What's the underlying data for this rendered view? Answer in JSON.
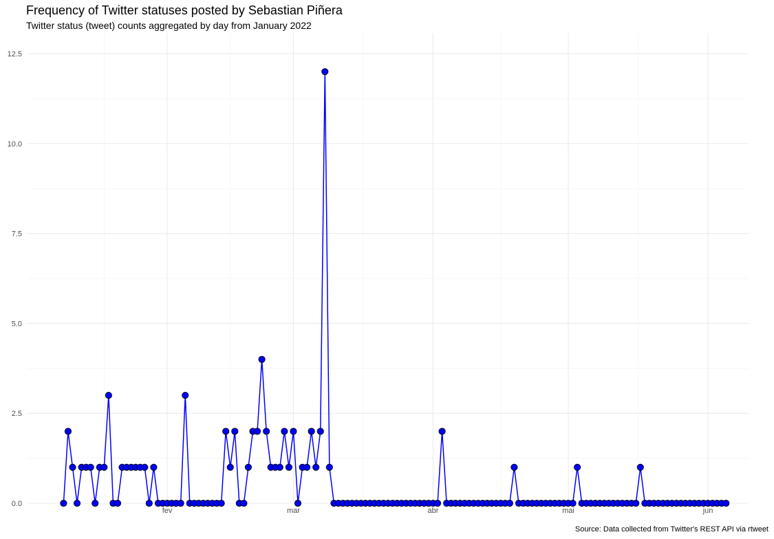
{
  "chart_data": {
    "type": "line",
    "title": "Frequency of Twitter statuses posted by Sebastian Piñera",
    "subtitle": "Twitter status (tweet) counts aggregated by day from January 2022",
    "caption": "Source: Data collected from Twitter's REST API via rtweet",
    "xlabel": "",
    "ylabel": "",
    "x_start": "2022-01-09",
    "x_end": "2022-06-05",
    "xlim": [
      "2022-01-01",
      "2022-06-10"
    ],
    "ylim": [
      0,
      12.5
    ],
    "y_ticks": [
      0.0,
      2.5,
      5.0,
      7.5,
      10.0,
      12.5
    ],
    "y_tick_labels": [
      "0.0",
      "2.5",
      "5.0",
      "7.5",
      "10.0",
      "12.5"
    ],
    "x_ticks": [
      "2022-02-01",
      "2022-03-01",
      "2022-04-01",
      "2022-05-01",
      "2022-06-01"
    ],
    "x_tick_labels": [
      "fev",
      "mar",
      "abr",
      "mai",
      "jun"
    ],
    "grid": true,
    "colors": {
      "line": "#0000ff",
      "point_fill": "#0000ff",
      "point_stroke": "#000000",
      "grid_major": "#ebebeb",
      "grid_minor": "#f4f4f4"
    },
    "values": [
      0,
      2,
      1,
      0,
      1,
      1,
      1,
      0,
      1,
      1,
      3,
      0,
      0,
      1,
      1,
      1,
      1,
      1,
      1,
      0,
      1,
      0,
      0,
      0,
      0,
      0,
      0,
      3,
      0,
      0,
      0,
      0,
      0,
      0,
      0,
      0,
      2,
      1,
      2,
      0,
      0,
      1,
      2,
      2,
      4,
      2,
      1,
      1,
      1,
      2,
      1,
      2,
      0,
      1,
      1,
      2,
      1,
      2,
      12,
      1,
      0,
      0,
      0,
      0,
      0,
      0,
      0,
      0,
      0,
      0,
      0,
      0,
      0,
      0,
      0,
      0,
      0,
      0,
      0,
      0,
      0,
      0,
      0,
      0,
      2,
      0,
      0,
      0,
      0,
      0,
      0,
      0,
      0,
      0,
      0,
      0,
      0,
      0,
      0,
      0,
      1,
      0,
      0,
      0,
      0,
      0,
      0,
      0,
      0,
      0,
      0,
      0,
      0,
      0,
      1,
      0,
      0,
      0,
      0,
      0,
      0,
      0,
      0,
      0,
      0,
      0,
      0,
      0,
      1,
      0,
      0,
      0,
      0,
      0,
      0,
      0,
      0,
      0,
      0,
      0,
      0,
      0,
      0,
      0,
      0,
      0,
      0,
      0
    ]
  }
}
